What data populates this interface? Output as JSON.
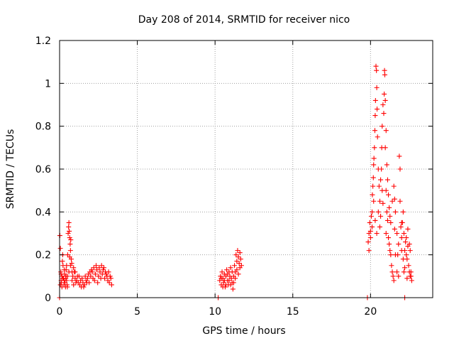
{
  "chart_data": {
    "type": "scatter",
    "title": "Day 208 of 2014, SRMTID for receiver nico",
    "xlabel": "GPS time / hours",
    "ylabel": "SRMTID / TECUs",
    "xlim": [
      0,
      24
    ],
    "ylim": [
      0,
      1.2
    ],
    "xticks": [
      0,
      5,
      10,
      15,
      20
    ],
    "xtick_labels": [
      "0",
      "5",
      "10",
      "15",
      "20"
    ],
    "yticks": [
      0,
      0.2,
      0.4,
      0.6,
      0.8,
      1.0,
      1.2
    ],
    "ytick_labels": [
      "0",
      "0.2",
      "0.4",
      "0.6",
      "0.8",
      "1",
      "1.2"
    ],
    "grid": true,
    "marker": "+",
    "colors": {
      "series": "#ff0000",
      "grid": "#a0a0a0",
      "axis": "#000000"
    },
    "series": [
      {
        "name": "SRMTID",
        "points": [
          [
            0.0,
            0.0
          ],
          [
            10.2,
            0.0
          ],
          [
            19.8,
            0.0
          ],
          [
            22.2,
            0.0
          ],
          [
            0.02,
            0.29
          ],
          [
            0.05,
            0.23
          ],
          [
            0.08,
            0.12
          ],
          [
            0.1,
            0.08
          ],
          [
            0.12,
            0.07
          ],
          [
            0.15,
            0.1
          ],
          [
            0.18,
            0.17
          ],
          [
            0.2,
            0.2
          ],
          [
            0.22,
            0.15
          ],
          [
            0.25,
            0.09
          ],
          [
            0.28,
            0.06
          ],
          [
            0.3,
            0.08
          ],
          [
            0.32,
            0.11
          ],
          [
            0.35,
            0.07
          ],
          [
            0.38,
            0.05
          ],
          [
            0.4,
            0.09
          ],
          [
            0.42,
            0.13
          ],
          [
            0.45,
            0.08
          ],
          [
            0.48,
            0.06
          ],
          [
            0.5,
            0.1
          ],
          [
            0.52,
            0.2
          ],
          [
            0.55,
            0.3
          ],
          [
            0.58,
            0.33
          ],
          [
            0.6,
            0.35
          ],
          [
            0.62,
            0.31
          ],
          [
            0.65,
            0.28
          ],
          [
            0.68,
            0.25
          ],
          [
            0.7,
            0.22
          ],
          [
            0.72,
            0.27
          ],
          [
            0.75,
            0.18
          ],
          [
            0.78,
            0.16
          ],
          [
            0.8,
            0.12
          ],
          [
            0.85,
            0.1
          ],
          [
            0.9,
            0.14
          ],
          [
            0.95,
            0.12
          ],
          [
            1.0,
            0.09
          ],
          [
            1.05,
            0.07
          ],
          [
            1.1,
            0.08
          ],
          [
            1.15,
            0.1
          ],
          [
            1.2,
            0.07
          ],
          [
            1.3,
            0.06
          ],
          [
            1.4,
            0.05
          ],
          [
            1.5,
            0.07
          ],
          [
            1.6,
            0.06
          ],
          [
            1.7,
            0.08
          ],
          [
            1.8,
            0.09
          ],
          [
            1.9,
            0.07
          ],
          [
            2.0,
            0.1
          ],
          [
            2.05,
            0.13
          ],
          [
            2.1,
            0.12
          ],
          [
            2.15,
            0.09
          ],
          [
            2.2,
            0.14
          ],
          [
            2.3,
            0.11
          ],
          [
            2.4,
            0.13
          ],
          [
            2.5,
            0.1
          ],
          [
            2.6,
            0.12
          ],
          [
            2.7,
            0.15
          ],
          [
            2.8,
            0.13
          ],
          [
            2.9,
            0.09
          ],
          [
            3.0,
            0.11
          ],
          [
            3.1,
            0.08
          ],
          [
            3.2,
            0.07
          ],
          [
            3.3,
            0.09
          ],
          [
            3.35,
            0.06
          ],
          [
            0.05,
            0.06
          ],
          [
            0.1,
            0.11
          ],
          [
            0.15,
            0.05
          ],
          [
            0.2,
            0.09
          ],
          [
            0.3,
            0.13
          ],
          [
            0.4,
            0.1
          ],
          [
            0.45,
            0.15
          ],
          [
            0.5,
            0.05
          ],
          [
            0.6,
            0.12
          ],
          [
            0.65,
            0.19
          ],
          [
            0.7,
            0.15
          ],
          [
            0.8,
            0.08
          ],
          [
            0.9,
            0.06
          ],
          [
            1.0,
            0.12
          ],
          [
            1.25,
            0.1
          ],
          [
            1.35,
            0.08
          ],
          [
            1.45,
            0.09
          ],
          [
            1.55,
            0.05
          ],
          [
            1.65,
            0.1
          ],
          [
            1.75,
            0.07
          ],
          [
            1.85,
            0.11
          ],
          [
            1.95,
            0.12
          ],
          [
            2.25,
            0.08
          ],
          [
            2.35,
            0.15
          ],
          [
            2.45,
            0.07
          ],
          [
            2.55,
            0.14
          ],
          [
            2.65,
            0.09
          ],
          [
            2.75,
            0.11
          ],
          [
            2.85,
            0.14
          ],
          [
            2.95,
            0.12
          ],
          [
            3.05,
            0.1
          ],
          [
            3.15,
            0.12
          ],
          [
            3.25,
            0.1
          ],
          [
            10.3,
            0.08
          ],
          [
            10.35,
            0.1
          ],
          [
            10.4,
            0.06
          ],
          [
            10.45,
            0.12
          ],
          [
            10.5,
            0.09
          ],
          [
            10.55,
            0.07
          ],
          [
            10.6,
            0.11
          ],
          [
            10.65,
            0.05
          ],
          [
            10.7,
            0.1
          ],
          [
            10.75,
            0.13
          ],
          [
            10.8,
            0.08
          ],
          [
            10.85,
            0.06
          ],
          [
            10.9,
            0.12
          ],
          [
            10.95,
            0.1
          ],
          [
            11.0,
            0.14
          ],
          [
            11.05,
            0.09
          ],
          [
            11.1,
            0.07
          ],
          [
            11.15,
            0.04
          ],
          [
            11.2,
            0.1
          ],
          [
            11.25,
            0.15
          ],
          [
            11.3,
            0.12
          ],
          [
            11.35,
            0.2
          ],
          [
            11.4,
            0.17
          ],
          [
            11.45,
            0.22
          ],
          [
            11.5,
            0.19
          ],
          [
            11.55,
            0.16
          ],
          [
            11.6,
            0.21
          ],
          [
            11.65,
            0.18
          ],
          [
            11.7,
            0.15
          ],
          [
            10.4,
            0.09
          ],
          [
            10.5,
            0.05
          ],
          [
            10.6,
            0.08
          ],
          [
            10.7,
            0.06
          ],
          [
            10.8,
            0.11
          ],
          [
            10.9,
            0.08
          ],
          [
            11.0,
            0.06
          ],
          [
            11.1,
            0.12
          ],
          [
            11.2,
            0.07
          ],
          [
            11.3,
            0.09
          ],
          [
            11.4,
            0.13
          ],
          [
            11.5,
            0.11
          ],
          [
            11.6,
            0.14
          ],
          [
            19.85,
            0.26
          ],
          [
            19.9,
            0.3
          ],
          [
            19.95,
            0.35
          ],
          [
            20.0,
            0.31
          ],
          [
            20.05,
            0.38
          ],
          [
            20.1,
            0.4
          ],
          [
            20.12,
            0.48
          ],
          [
            20.15,
            0.52
          ],
          [
            20.18,
            0.56
          ],
          [
            20.2,
            0.62
          ],
          [
            20.22,
            0.65
          ],
          [
            20.25,
            0.7
          ],
          [
            20.28,
            0.78
          ],
          [
            20.3,
            0.85
          ],
          [
            20.32,
            0.92
          ],
          [
            20.35,
            1.08
          ],
          [
            20.38,
            1.06
          ],
          [
            20.4,
            0.98
          ],
          [
            20.42,
            0.88
          ],
          [
            20.45,
            0.75
          ],
          [
            20.5,
            0.6
          ],
          [
            20.55,
            0.52
          ],
          [
            20.6,
            0.45
          ],
          [
            20.65,
            0.38
          ],
          [
            20.7,
            0.6
          ],
          [
            20.72,
            0.7
          ],
          [
            20.75,
            0.8
          ],
          [
            20.8,
            0.9
          ],
          [
            20.85,
            0.86
          ],
          [
            20.88,
            0.95
          ],
          [
            20.9,
            1.06
          ],
          [
            20.92,
            1.04
          ],
          [
            20.95,
            0.92
          ],
          [
            21.0,
            0.78
          ],
          [
            21.05,
            0.62
          ],
          [
            21.1,
            0.55
          ],
          [
            21.15,
            0.48
          ],
          [
            21.2,
            0.42
          ],
          [
            21.25,
            0.38
          ],
          [
            21.3,
            0.35
          ],
          [
            21.4,
            0.45
          ],
          [
            21.5,
            0.52
          ],
          [
            21.55,
            0.46
          ],
          [
            21.6,
            0.4
          ],
          [
            21.7,
            0.3
          ],
          [
            21.8,
            0.25
          ],
          [
            21.85,
            0.66
          ],
          [
            21.9,
            0.6
          ],
          [
            21.95,
            0.33
          ],
          [
            22.0,
            0.28
          ],
          [
            22.05,
            0.35
          ],
          [
            22.1,
            0.4
          ],
          [
            22.15,
            0.3
          ],
          [
            22.2,
            0.22
          ],
          [
            22.25,
            0.26
          ],
          [
            22.3,
            0.2
          ],
          [
            22.35,
            0.18
          ],
          [
            22.4,
            0.24
          ],
          [
            22.45,
            0.15
          ],
          [
            22.5,
            0.12
          ],
          [
            22.55,
            0.1
          ],
          [
            22.6,
            0.12
          ],
          [
            19.9,
            0.22
          ],
          [
            20.0,
            0.28
          ],
          [
            20.1,
            0.33
          ],
          [
            20.2,
            0.45
          ],
          [
            20.3,
            0.36
          ],
          [
            20.4,
            0.3
          ],
          [
            20.5,
            0.4
          ],
          [
            20.6,
            0.33
          ],
          [
            20.65,
            0.55
          ],
          [
            20.75,
            0.5
          ],
          [
            20.8,
            0.44
          ],
          [
            20.95,
            0.7
          ],
          [
            21.0,
            0.5
          ],
          [
            21.05,
            0.4
          ],
          [
            21.1,
            0.36
          ],
          [
            21.2,
            0.25
          ],
          [
            21.3,
            0.2
          ],
          [
            21.35,
            0.15
          ],
          [
            21.4,
            0.12
          ],
          [
            21.45,
            0.1
          ],
          [
            21.5,
            0.08
          ],
          [
            21.6,
            0.2
          ],
          [
            21.7,
            0.12
          ],
          [
            21.8,
            0.1
          ],
          [
            21.9,
            0.45
          ],
          [
            22.0,
            0.22
          ],
          [
            22.1,
            0.18
          ],
          [
            22.2,
            0.14
          ],
          [
            22.3,
            0.28
          ],
          [
            22.4,
            0.32
          ],
          [
            22.5,
            0.25
          ],
          [
            22.55,
            0.22
          ],
          [
            22.6,
            0.1
          ],
          [
            22.65,
            0.08
          ],
          [
            21.0,
            0.3
          ],
          [
            21.15,
            0.28
          ],
          [
            21.25,
            0.22
          ],
          [
            21.55,
            0.32
          ],
          [
            21.75,
            0.2
          ],
          [
            22.0,
            0.35
          ],
          [
            22.15,
            0.12
          ],
          [
            22.35,
            0.09
          ]
        ]
      }
    ]
  }
}
